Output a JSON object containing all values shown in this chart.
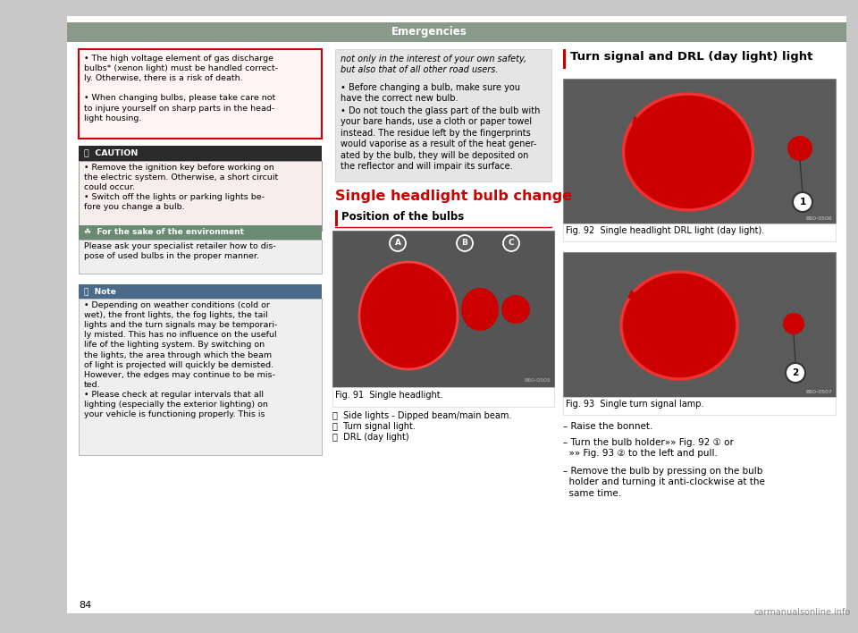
{
  "outer_bg": "#c8c8c8",
  "content_bg": "#ffffff",
  "header_bg": "#8a9a8a",
  "header_text": "Emergencies",
  "header_text_color": "#ffffff",
  "warning_box_border": "#cc0000",
  "warning_box_bg": "#fff5f5",
  "warning_text": "• The high voltage element of gas discharge\nbulbs* (xenon light) must be handled correct-\nly. Otherwise, there is a risk of death.\n\n• When changing bulbs, please take care not\nto injure yourself on sharp parts in the head-\nlight housing.",
  "caution_header_bg": "#2a2a2a",
  "caution_header_text": "ⓘ  CAUTION",
  "caution_body_bg": "#f8eded",
  "caution_text": "• Remove the ignition key before working on\nthe electric system. Otherwise, a short circuit\ncould occur.\n• Switch off the lights or parking lights be-\nfore you change a bulb.",
  "env_header_bg": "#6a8a72",
  "env_header_text": "☘  For the sake of the environment",
  "env_text": "Please ask your specialist retailer how to dis-\npose of used bulbs in the proper manner.",
  "note_header_bg": "#4a6a8a",
  "note_header_text": "ⓘ  Note",
  "note_text": "• Depending on weather conditions (cold or\nwet), the front lights, the fog lights, the tail\nlights and the turn signals may be temporari-\nly misted. This has no influence on the useful\nlife of the lighting system. By switching on\nthe lights, the area through which the beam\nof light is projected will quickly be demisted.\nHowever, the edges may continue to be mis-\nted.\n• Please check at regular intervals that all\nlighting (especially the exterior lighting) on\nyour vehicle is functioning properly. This is",
  "mid_italic": "not only in the interest of your own safety,\nbut also that of all other road users.",
  "mid_bullet_1": "• Before changing a bulb, make sure you\nhave the correct new bulb.",
  "mid_bullet_2": "• Do not touch the glass part of the bulb with\nyour bare hands, use a cloth or paper towel\ninstead. The residue left by the fingerprints\nwould vaporise as a result of the heat gener-\nated by the bulb, they will be deposited on\nthe reflector and will impair its surface.",
  "section_title": "Single headlight bulb change",
  "section_title_color": "#cc0000",
  "subsection_title": "Position of the bulbs",
  "fig91_caption": "Fig. 91  Single headlight.",
  "fig91_a": "Ⓐ  Side lights - Dipped beam/main beam.",
  "fig91_b": "Ⓑ  Turn signal light.",
  "fig91_c": "Ⓒ  DRL (day light)",
  "right_title": "Turn signal and DRL (day light) light",
  "fig92_caption": "Fig. 92  Single headlight DRL light (day light).",
  "fig92_code": "B60-0506",
  "fig93_caption": "Fig. 93  Single turn signal lamp.",
  "fig93_code": "B60-0507",
  "instr1": "– Raise the bonnet.",
  "instr2": "– Turn the bulb holder»» Fig. 92 ① or\n  »» Fig. 93 ② to the left and pull.",
  "instr3": "– Remove the bulb by pressing on the bulb\n  holder and turning it anti-clockwise at the\n  same time.",
  "page_number": "84",
  "watermark": "carmanualsonline.info"
}
